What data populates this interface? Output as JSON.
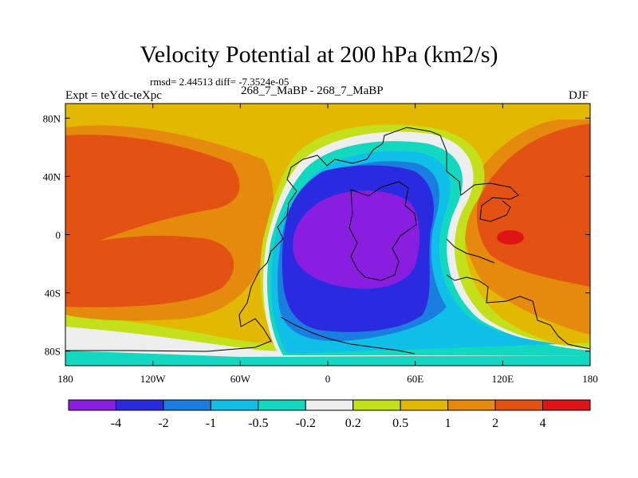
{
  "title": "Velocity Potential at 200 hPa (km2/s)",
  "stats_line": "rmsd= 2.44513  diff= -7.3524e-05",
  "experiment": "Expt = teYdc-teXpc",
  "case_label": "268_7_MaBP - 268_7_MaBP",
  "season": "DJF",
  "chart_data": {
    "type": "contour_map",
    "variable": "Velocity Potential",
    "level": "200 hPa",
    "units": "km2/s",
    "x_axis": {
      "range": [
        -180,
        180
      ],
      "ticks": [
        {
          "value": -180,
          "label": "180"
        },
        {
          "value": -120,
          "label": "120W"
        },
        {
          "value": -60,
          "label": "60W"
        },
        {
          "value": 0,
          "label": "0"
        },
        {
          "value": 60,
          "label": "60E"
        },
        {
          "value": 120,
          "label": "120E"
        },
        {
          "value": 180,
          "label": "180"
        }
      ]
    },
    "y_axis": {
      "range": [
        -90,
        90
      ],
      "ticks": [
        {
          "value": 80,
          "label": "80N"
        },
        {
          "value": 40,
          "label": "40N"
        },
        {
          "value": 0,
          "label": "0"
        },
        {
          "value": -40,
          "label": "40S"
        },
        {
          "value": -80,
          "label": "80S"
        }
      ]
    },
    "colorbar": {
      "colors": [
        "#8a1ee0",
        "#2a2ae0",
        "#1a7ee0",
        "#10bfe8",
        "#12d8c0",
        "#eeeeee",
        "#c4e01a",
        "#e2b800",
        "#e58a0c",
        "#e35212",
        "#e01414"
      ],
      "labels": [
        "-4",
        "-2",
        "-1",
        "-0.5",
        "-0.2",
        "0.2",
        "0.5",
        "1",
        "2",
        "4"
      ]
    },
    "features": [
      {
        "name": "velocity-potential-minimum",
        "lon": 45,
        "lat": -5,
        "level": "< -4"
      },
      {
        "name": "velocity-potential-maximum",
        "lon": 126,
        "lat": 0,
        "level": "> 4"
      }
    ]
  }
}
